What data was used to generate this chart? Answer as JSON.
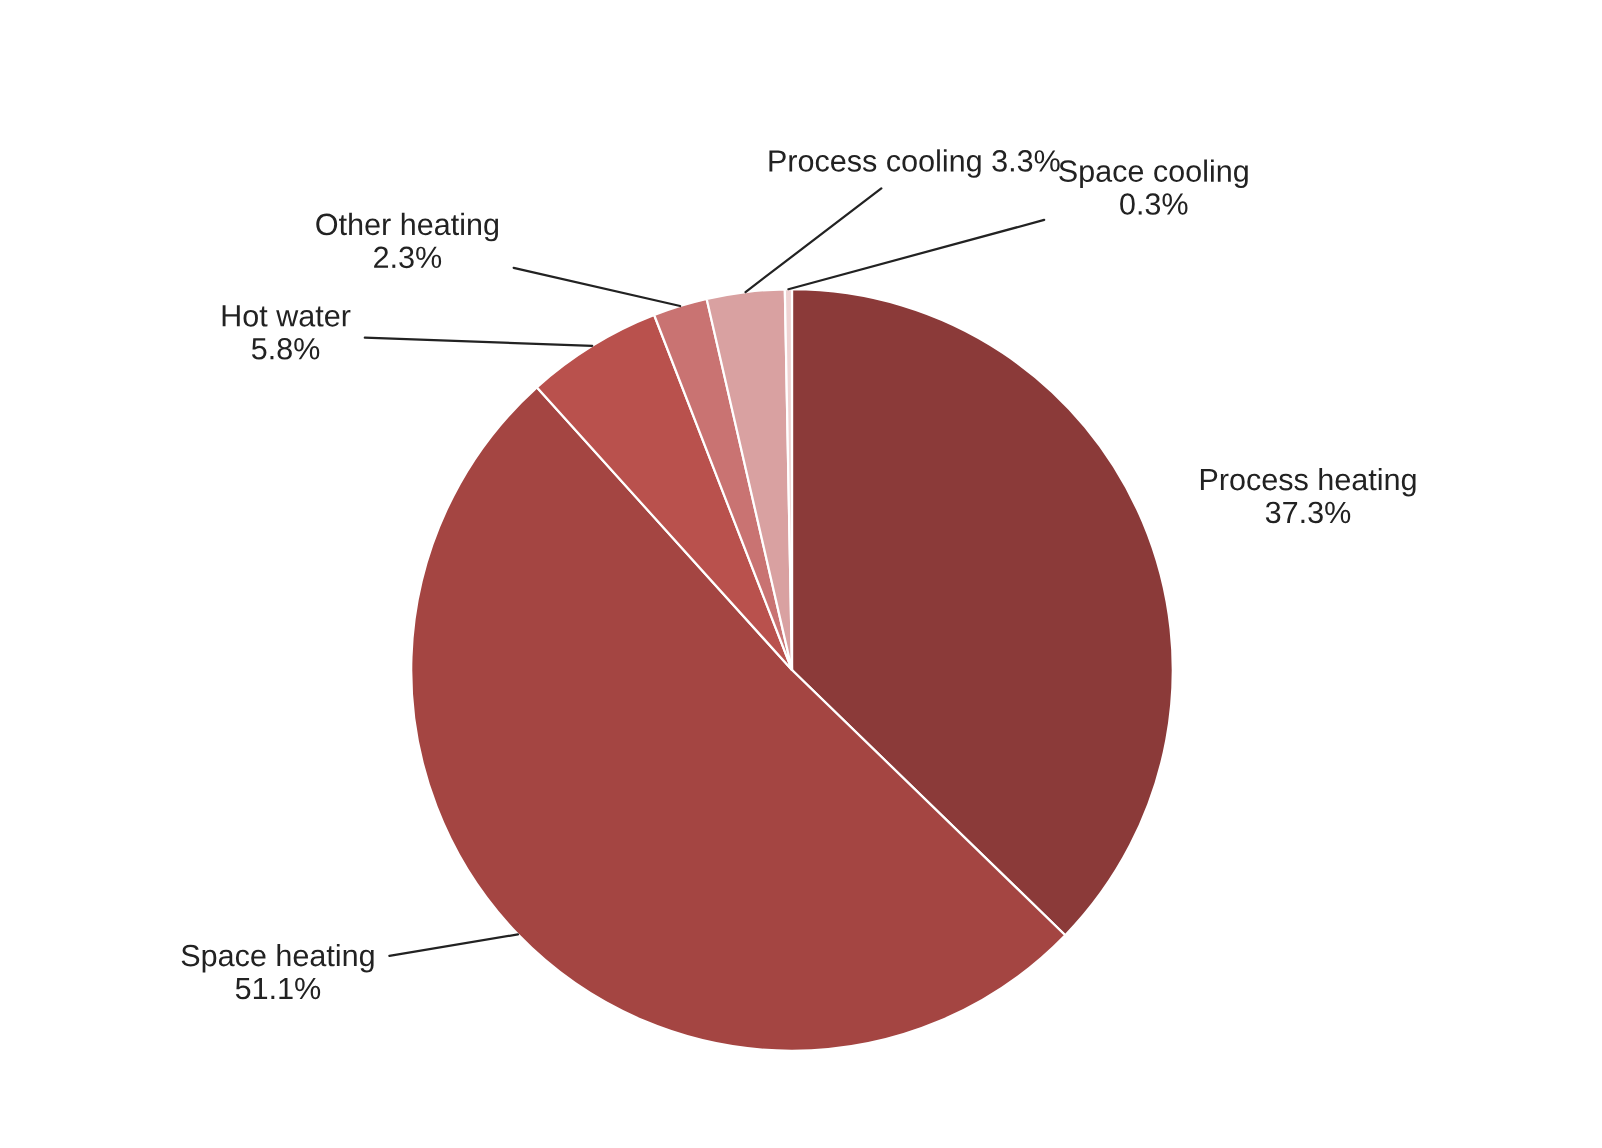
{
  "chart_data": {
    "type": "pie",
    "categories": [
      "Process heating",
      "Space heating",
      "Hot water",
      "Other heating",
      "Process cooling",
      "Space cooling"
    ],
    "values": [
      37.3,
      51.1,
      5.8,
      2.3,
      3.3,
      0.3
    ],
    "colors": [
      "#8b3a39",
      "#a44542",
      "#b9514d",
      "#c97372",
      "#d9a1a1",
      "#efd3d3"
    ],
    "value_labels": [
      "37.3%",
      "51.1%",
      "5.8%",
      "2.3%",
      "3.3%",
      "0.3%"
    ],
    "legend": false
  }
}
